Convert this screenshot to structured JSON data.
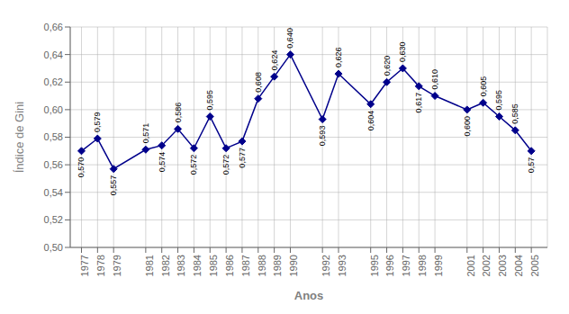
{
  "chart_data": {
    "type": "line",
    "xlabel": "Anos",
    "ylabel": "Índice de Gini",
    "x": [
      1977,
      1978,
      1979,
      1981,
      1982,
      1983,
      1984,
      1985,
      1986,
      1987,
      1988,
      1989,
      1990,
      1992,
      1993,
      1995,
      1996,
      1997,
      1998,
      1999,
      2001,
      2002,
      2003,
      2004,
      2005
    ],
    "values": [
      0.57,
      0.579,
      0.557,
      0.571,
      0.574,
      0.586,
      0.572,
      0.595,
      0.572,
      0.577,
      0.608,
      0.624,
      0.64,
      0.593,
      0.626,
      0.604,
      0.62,
      0.63,
      0.617,
      0.61,
      0.6,
      0.605,
      0.595,
      0.585,
      0.57
    ],
    "value_labels": [
      "0,570",
      "0,579",
      "0,557",
      "0,571",
      "0,574",
      "0,586",
      "0,572",
      "0,595",
      "0,572",
      "0,577",
      "0,608",
      "0,624",
      "0,640",
      "0,593",
      "0,626",
      "0,604",
      "0,620",
      "0,630",
      "0,617",
      "0,610",
      "0,600",
      "0,605",
      "0,595",
      "0,585",
      "0,57"
    ],
    "color": "#00008B",
    "marker": "diamond",
    "data_labels": true,
    "grid": true,
    "xlim": [
      1976.3,
      2006.0
    ],
    "xticks": [
      1977,
      1978,
      1979,
      1981,
      1982,
      1983,
      1984,
      1985,
      1986,
      1987,
      1988,
      1989,
      1990,
      1992,
      1993,
      1995,
      1996,
      1997,
      1998,
      1999,
      2001,
      2002,
      2003,
      2004,
      2005
    ],
    "ylim": [
      0.5,
      0.66
    ],
    "yticks": [
      {
        "value": 0.5,
        "label": "0,50"
      },
      {
        "value": 0.52,
        "label": "0,52"
      },
      {
        "value": 0.54,
        "label": "0,54"
      },
      {
        "value": 0.56,
        "label": "0,56"
      },
      {
        "value": 0.58,
        "label": "0,58"
      },
      {
        "value": 0.6,
        "label": "0,60"
      },
      {
        "value": 0.62,
        "label": "0,62"
      },
      {
        "value": 0.64,
        "label": "0,64"
      },
      {
        "value": 0.66,
        "label": "0,66"
      }
    ]
  }
}
